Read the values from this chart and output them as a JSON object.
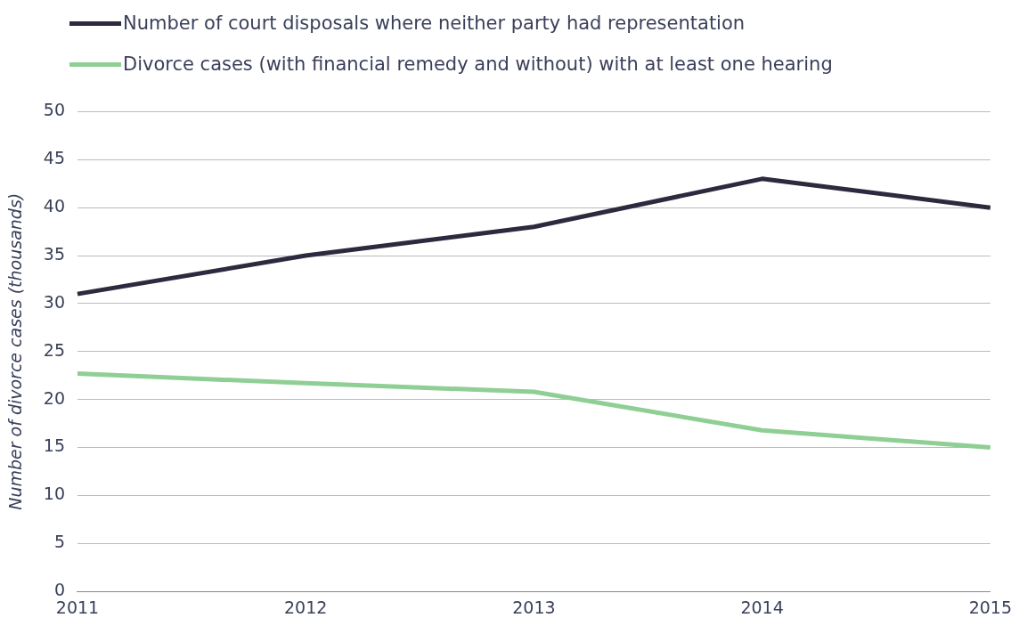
{
  "chart_data": {
    "type": "line",
    "ylabel": "Number of divorce cases (thousands)",
    "categories": [
      "2011",
      "2012",
      "2013",
      "2014",
      "2015"
    ],
    "series": [
      {
        "name": "Number of court disposals where neither party had representation",
        "color": "#2b2a3f",
        "values": [
          31,
          35,
          38,
          43,
          40
        ]
      },
      {
        "name": "Divorce cases (with financial remedy and without) with at least one hearing",
        "color": "#8fcf95",
        "values": [
          22.7,
          21.7,
          20.8,
          16.8,
          15
        ]
      }
    ],
    "ylim": [
      0,
      50
    ],
    "yticks": [
      0,
      5,
      10,
      15,
      20,
      25,
      30,
      35,
      40,
      45,
      50
    ],
    "grid": "y",
    "legend": "top left",
    "marker": "none",
    "line_style": "solid"
  }
}
